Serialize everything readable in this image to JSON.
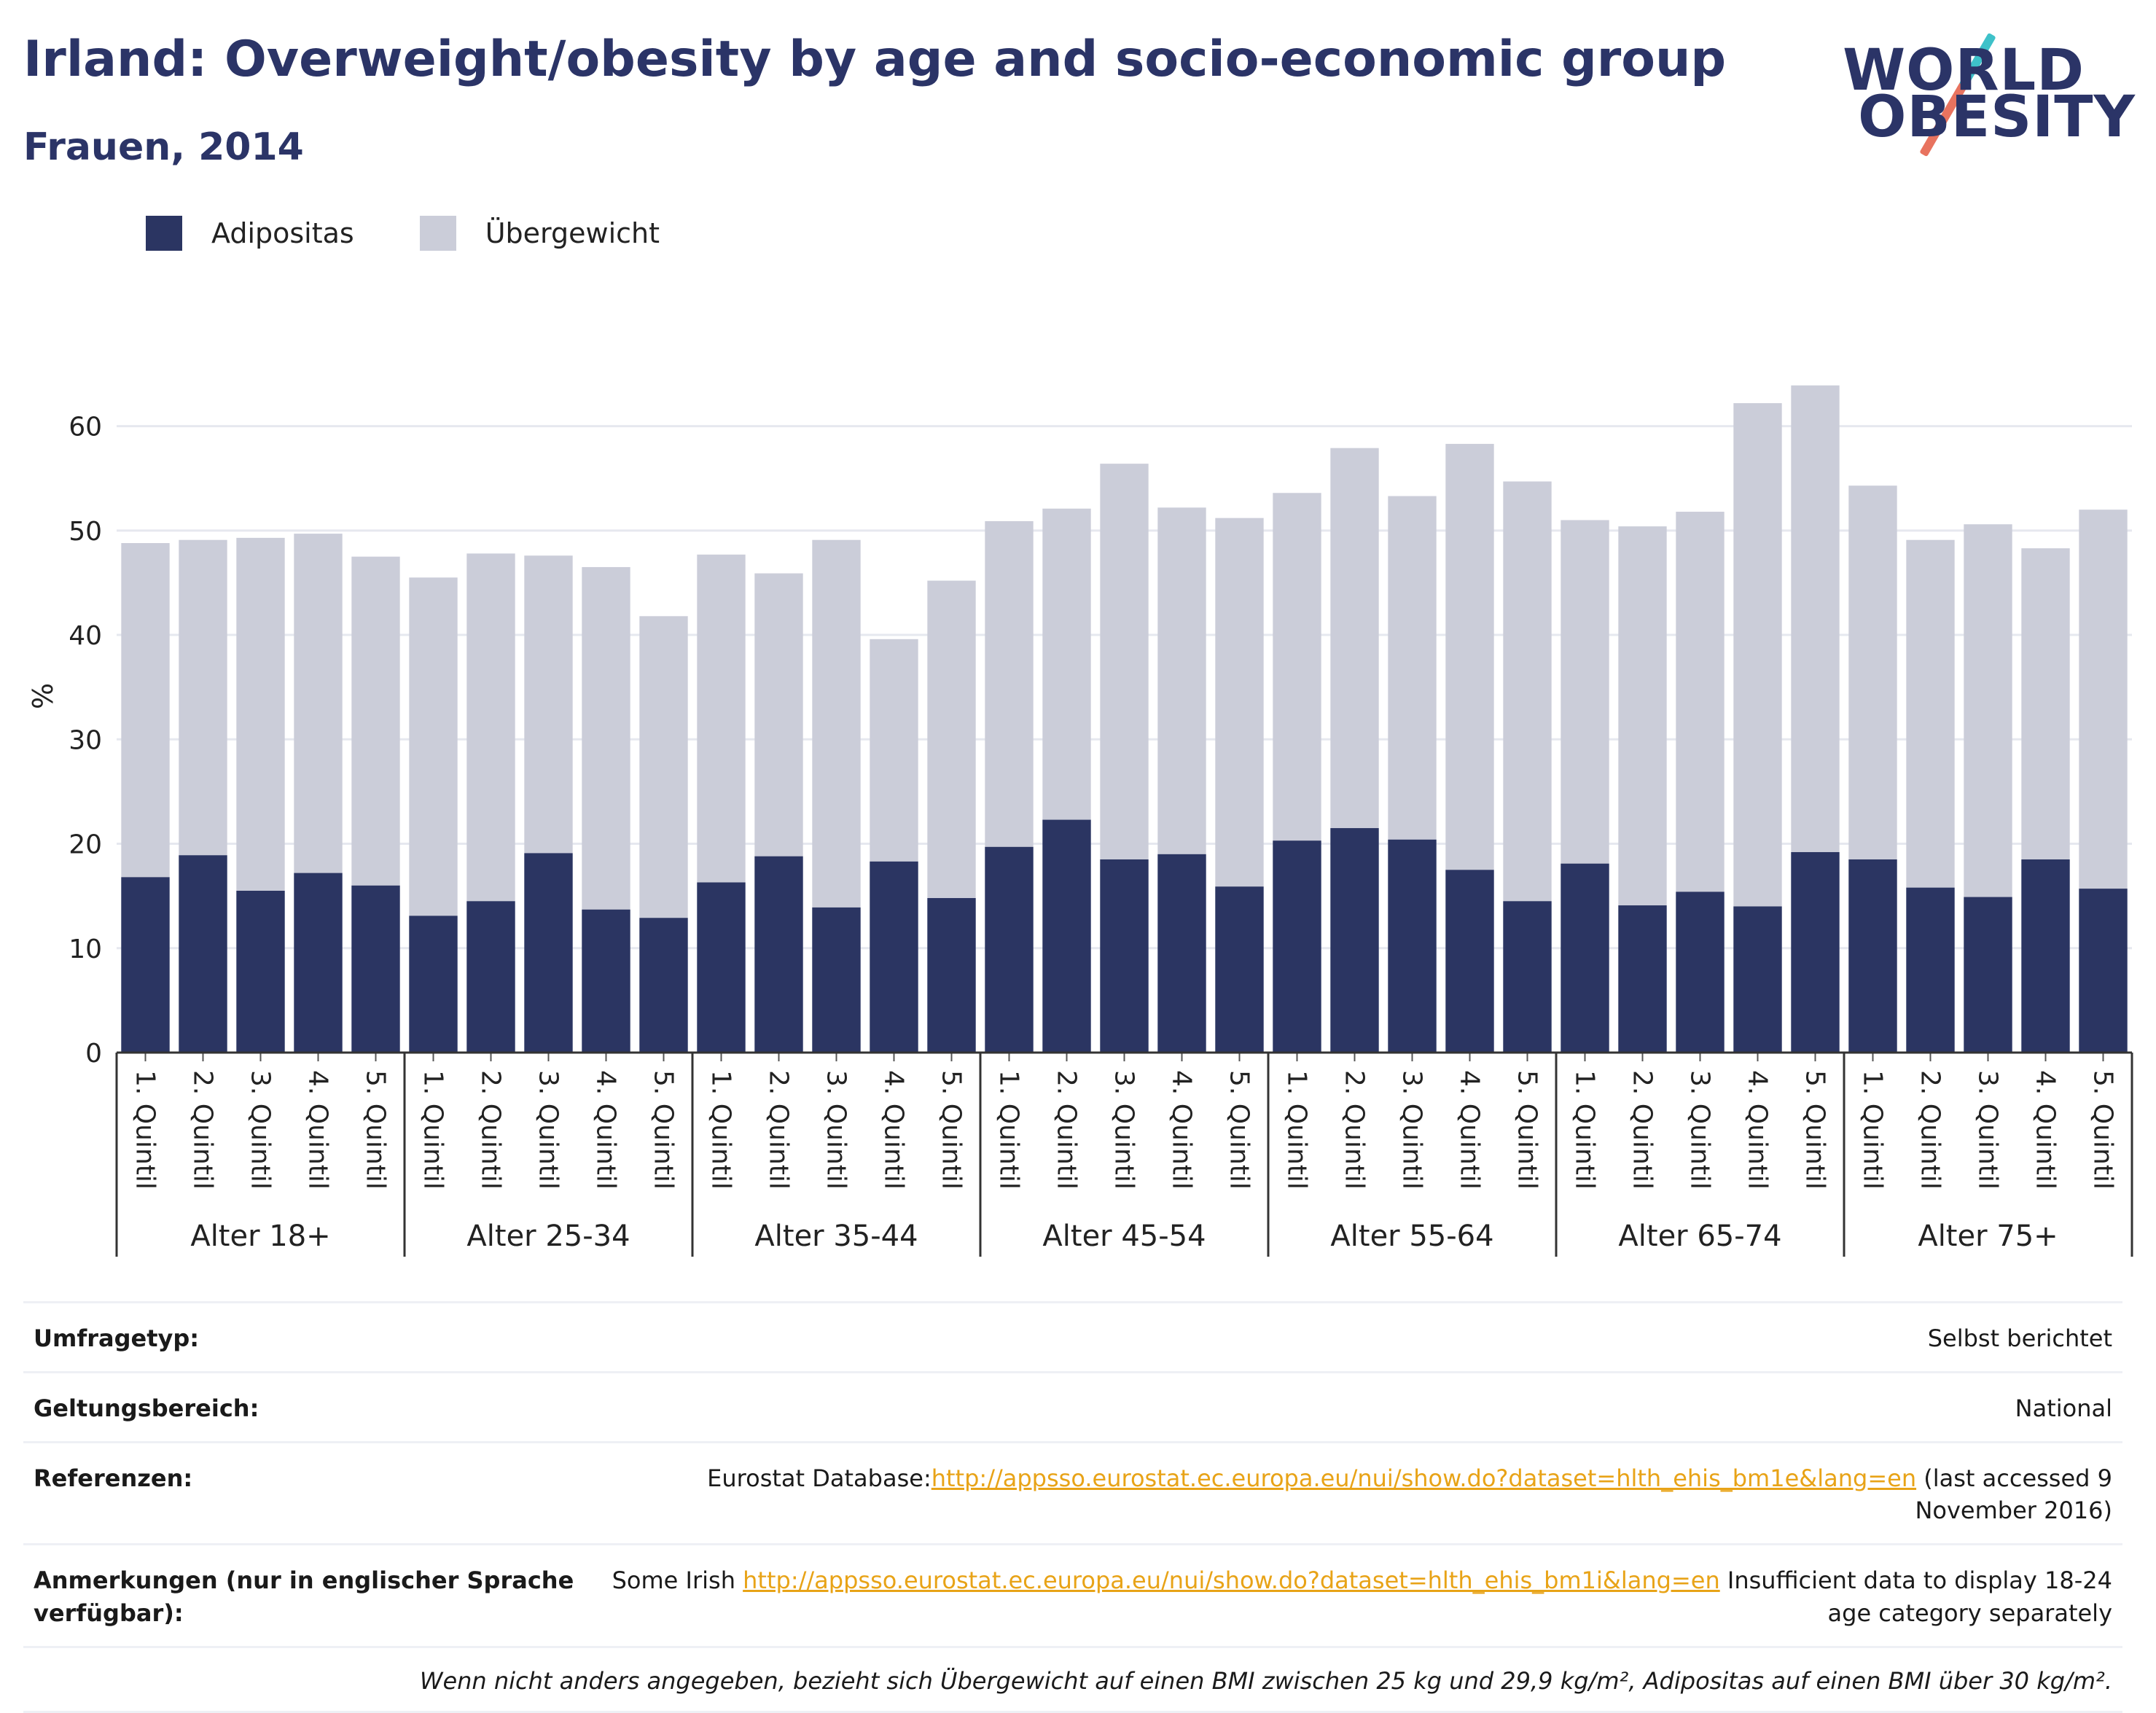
{
  "header": {
    "title": "Irland: Overweight/obesity by age and socio-economic group",
    "subtitle": "Frauen, 2014"
  },
  "logo": {
    "line1": "WORLD",
    "line2": "OBESITY"
  },
  "colors": {
    "obesity": "#2b3562",
    "overweight": "#cbcdd9",
    "title": "#2b3467",
    "link": "#e8a317"
  },
  "legend": [
    {
      "label": "Adipositas",
      "color": "#2b3562"
    },
    {
      "label": "Übergewicht",
      "color": "#cbcdd9"
    }
  ],
  "chart_data": {
    "type": "bar",
    "stacked": true,
    "ylabel": "%",
    "ylim": [
      0,
      68
    ],
    "yticks": [
      0,
      10,
      20,
      30,
      40,
      50,
      60
    ],
    "grid": true,
    "legend_position": "top-left",
    "groups": [
      {
        "label": "Alter 18+",
        "categories": [
          "1. Quintil",
          "2. Quintil",
          "3. Quintil",
          "4. Quintil",
          "5. Quintil"
        ],
        "adipositas": [
          16.8,
          18.9,
          15.5,
          17.2,
          16.0
        ],
        "total": [
          48.8,
          49.1,
          49.3,
          49.7,
          47.5
        ]
      },
      {
        "label": "Alter 25-34",
        "categories": [
          "1. Quintil",
          "2. Quintil",
          "3. Quintil",
          "4. Quintil",
          "5. Quintil"
        ],
        "adipositas": [
          13.1,
          14.5,
          19.1,
          13.7,
          12.9
        ],
        "total": [
          45.5,
          47.8,
          47.6,
          46.5,
          41.8
        ]
      },
      {
        "label": "Alter 35-44",
        "categories": [
          "1. Quintil",
          "2. Quintil",
          "3. Quintil",
          "4. Quintil",
          "5. Quintil"
        ],
        "adipositas": [
          16.3,
          18.8,
          13.9,
          18.3,
          14.8
        ],
        "total": [
          47.7,
          45.9,
          49.1,
          39.6,
          45.2
        ]
      },
      {
        "label": "Alter 45-54",
        "categories": [
          "1. Quintil",
          "2. Quintil",
          "3. Quintil",
          "4. Quintil",
          "5. Quintil"
        ],
        "adipositas": [
          19.7,
          22.3,
          18.5,
          19.0,
          15.9
        ],
        "total": [
          50.9,
          52.1,
          56.4,
          52.2,
          51.2
        ]
      },
      {
        "label": "Alter 55-64",
        "categories": [
          "1. Quintil",
          "2. Quintil",
          "3. Quintil",
          "4. Quintil",
          "5. Quintil"
        ],
        "adipositas": [
          20.3,
          21.5,
          20.4,
          17.5,
          14.5
        ],
        "total": [
          53.6,
          57.9,
          53.3,
          58.3,
          54.7
        ]
      },
      {
        "label": "Alter 65-74",
        "categories": [
          "1. Quintil",
          "2. Quintil",
          "3. Quintil",
          "4. Quintil",
          "5. Quintil"
        ],
        "adipositas": [
          18.1,
          14.1,
          15.4,
          14.0,
          19.2
        ],
        "total": [
          51.0,
          50.4,
          51.8,
          62.2,
          63.9
        ]
      },
      {
        "label": "Alter 75+",
        "categories": [
          "1. Quintil",
          "2. Quintil",
          "3. Quintil",
          "4. Quintil",
          "5. Quintil"
        ],
        "adipositas": [
          18.5,
          15.8,
          14.9,
          18.5,
          15.7
        ],
        "total": [
          54.3,
          49.1,
          50.6,
          48.3,
          52.0
        ]
      }
    ]
  },
  "info": {
    "survey_type_label": "Umfragetyp:",
    "survey_type_value": "Selbst berichtet",
    "scope_label": "Geltungsbereich:",
    "scope_value": "National",
    "references_label": "Referenzen:",
    "references_prefix": "Eurostat Database:",
    "references_link": "http://appsso.eurostat.ec.europa.eu/nui/show.do?dataset=hlth_ehis_bm1e&lang=en",
    "references_suffix": " (last accessed 9 November 2016)",
    "notes_label": "Anmerkungen (nur in englischer Sprache verfügbar):",
    "notes_prefix": "Some Irish ",
    "notes_link": "http://appsso.eurostat.ec.europa.eu/nui/show.do?dataset=hlth_ehis_bm1i&lang=en",
    "notes_suffix": " Insufficient data to display 18-24 age category separately",
    "footnote": "Wenn nicht anders angegeben, bezieht sich Übergewicht auf einen BMI zwischen 25 kg und 29,9 kg/m², Adipositas auf einen BMI über 30 kg/m²."
  }
}
